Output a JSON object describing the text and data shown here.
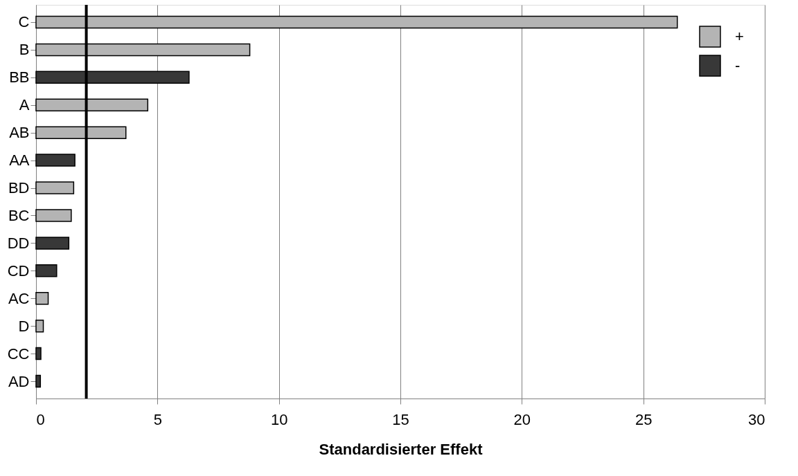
{
  "chart_data": {
    "type": "bar",
    "orientation": "horizontal",
    "xlabel": "Standardisierter Effekt",
    "categories": [
      "C",
      "B",
      "BB",
      "A",
      "AB",
      "AA",
      "BD",
      "BC",
      "DD",
      "CD",
      "AC",
      "D",
      "CC",
      "AD"
    ],
    "series": [
      {
        "name": "+",
        "color": "#b4b4b4",
        "values": [
          26.4,
          8.8,
          null,
          4.6,
          3.7,
          null,
          1.55,
          1.45,
          null,
          null,
          0.5,
          0.3,
          null,
          null
        ]
      },
      {
        "name": "-",
        "color": "#383838",
        "values": [
          null,
          null,
          6.3,
          null,
          null,
          1.6,
          null,
          null,
          1.35,
          0.85,
          null,
          null,
          0.2,
          0.18
        ]
      }
    ],
    "xlim": [
      0,
      30
    ],
    "xticks": [
      0,
      5,
      10,
      15,
      20,
      25,
      30
    ],
    "ref_lines": [
      {
        "axis": "x",
        "value": 2.07,
        "color": "#000000"
      }
    ],
    "grid": "x",
    "legend": "top right"
  }
}
